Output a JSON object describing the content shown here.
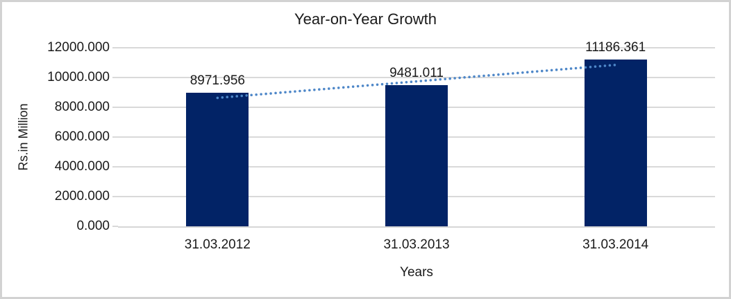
{
  "chart_data": {
    "type": "bar",
    "title": "Year-on-Year Growth",
    "xlabel": "Years",
    "ylabel": "Rs.in Million",
    "categories": [
      "31.03.2012",
      "31.03.2013",
      "31.03.2014"
    ],
    "values": [
      8971.956,
      9481.011,
      11186.361
    ],
    "value_labels": [
      "8971.956",
      "9481.011",
      "11186.361"
    ],
    "ylim": [
      0,
      12000
    ],
    "ytick_step": 2000,
    "yticks": [
      "0.000",
      "2000.000",
      "4000.000",
      "6000.000",
      "8000.000",
      "10000.000",
      "12000.000"
    ],
    "grid": "horizontal",
    "legend": "none",
    "trendline": {
      "kind": "linear",
      "style": "dotted"
    },
    "colors": {
      "bar": "#022366",
      "trendline": "#4e87c8",
      "gridline": "#d9d9d9",
      "frame_border": "#d2d2d2",
      "text": "#1a1a1a"
    }
  }
}
